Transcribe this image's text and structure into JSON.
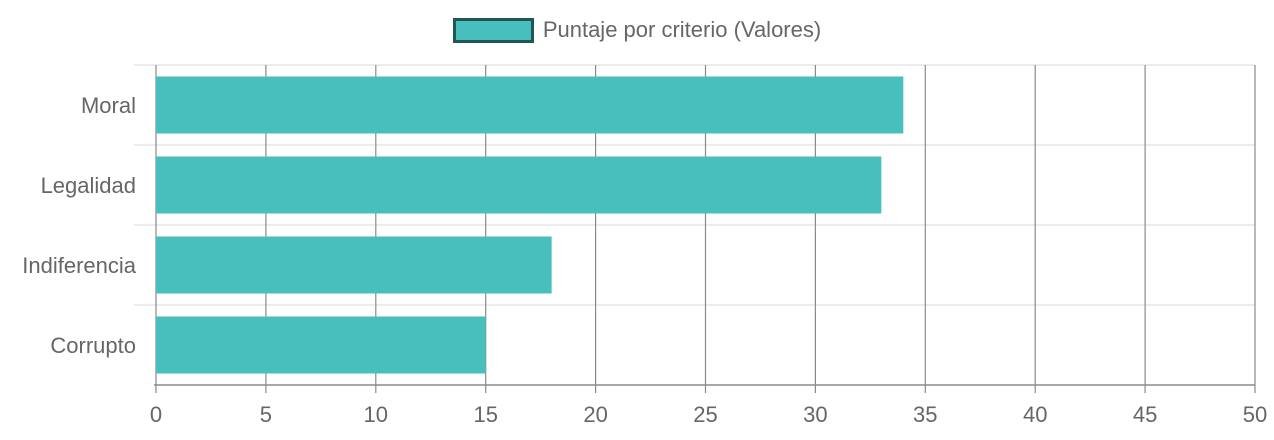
{
  "colors": {
    "bar_fill": "#48bfbc",
    "legend_border": "#1f5753",
    "grid_vertical": "#8a8a8a",
    "grid_horizontal": "#e0e0e0",
    "text": "#666666"
  },
  "chart_data": {
    "type": "bar",
    "orientation": "horizontal",
    "categories": [
      "Moral",
      "Legalidad",
      "Indiferencia",
      "Corrupto"
    ],
    "series": [
      {
        "name": "Puntaje por criterio (Valores)",
        "values": [
          34,
          33,
          18,
          15
        ]
      }
    ],
    "xlim": [
      0,
      50
    ],
    "x_ticks": [
      "0",
      "5",
      "10",
      "15",
      "20",
      "25",
      "30",
      "35",
      "40",
      "45",
      "50"
    ],
    "grid": true,
    "legend_position": "top-center"
  }
}
